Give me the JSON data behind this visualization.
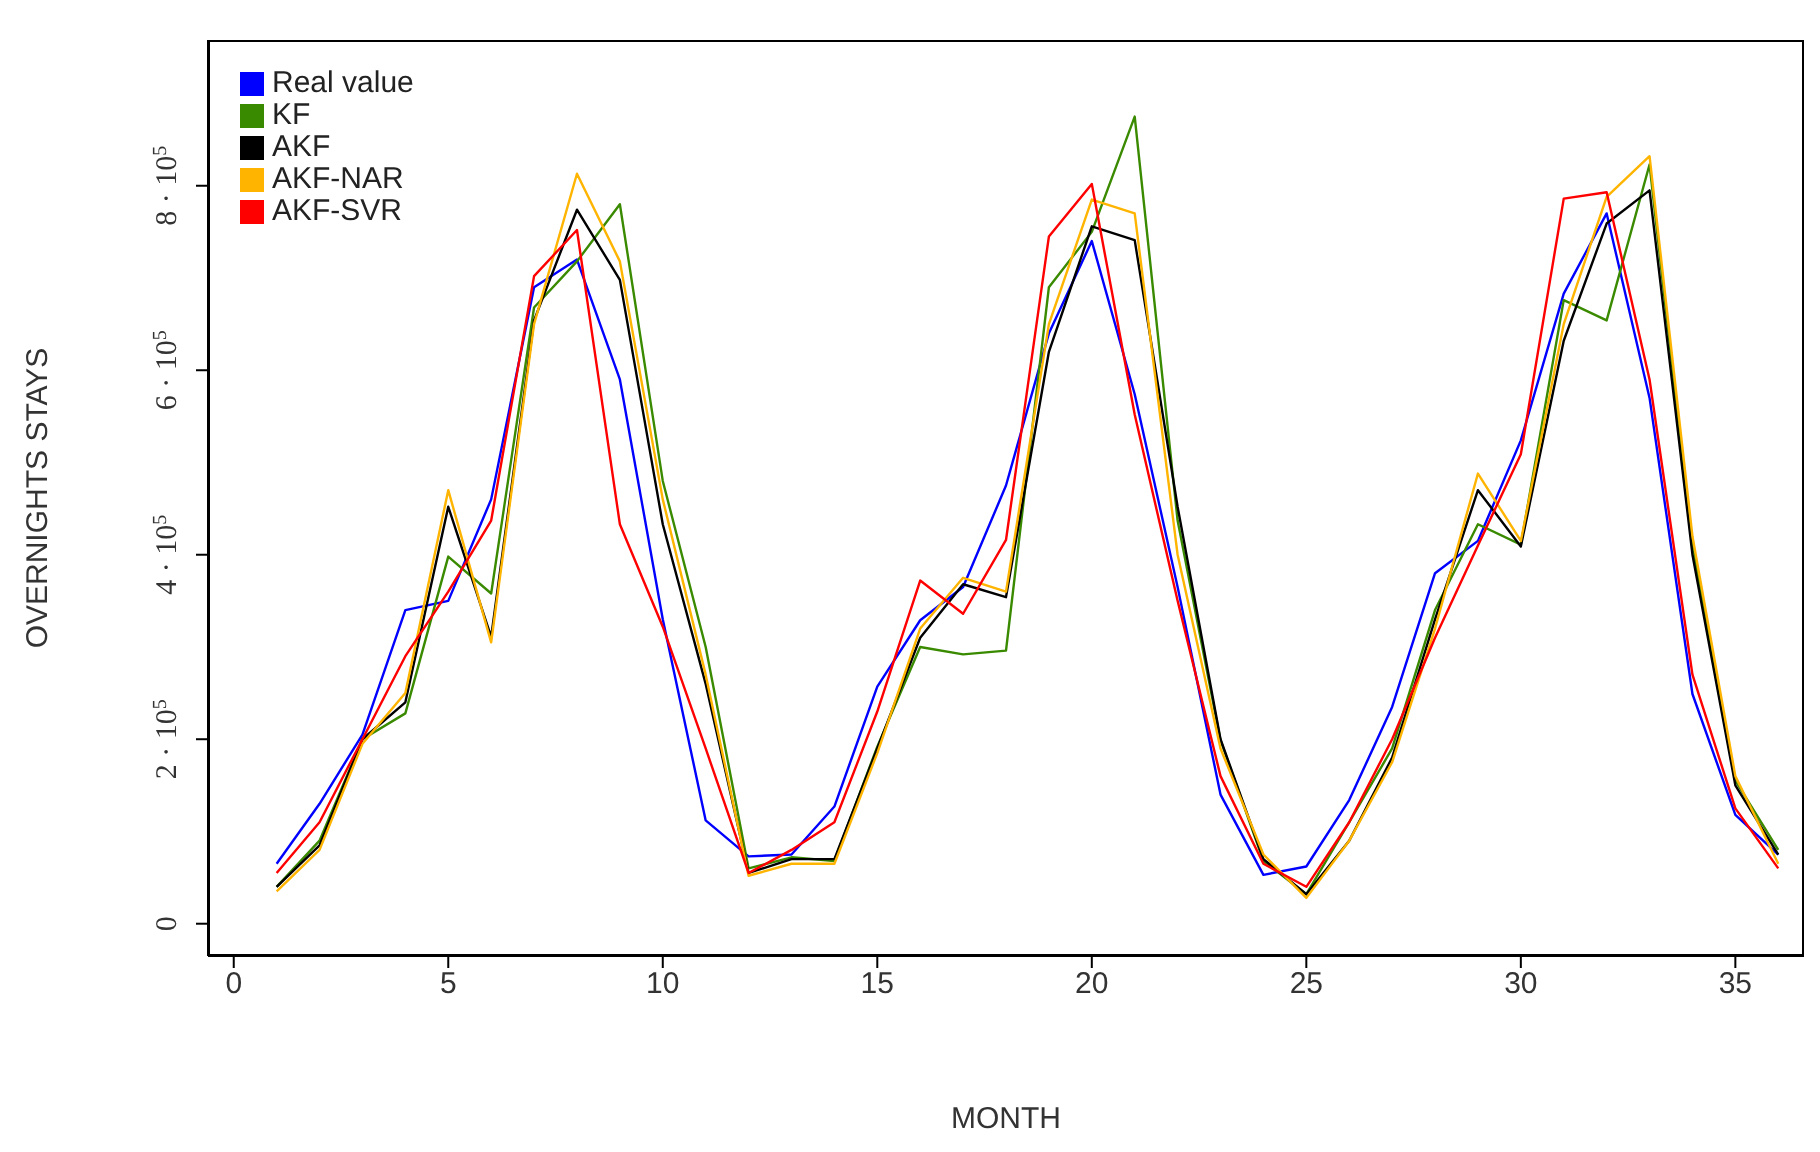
{
  "chart_data": {
    "type": "line",
    "xlabel": "MONTH",
    "ylabel": "OVERNIGHTS STAYS",
    "x": [
      1,
      2,
      3,
      4,
      5,
      6,
      7,
      8,
      9,
      10,
      11,
      12,
      13,
      14,
      15,
      16,
      17,
      18,
      19,
      20,
      21,
      22,
      23,
      24,
      25,
      26,
      27,
      28,
      29,
      30,
      31,
      32,
      33,
      34,
      35,
      36
    ],
    "xlim": [
      -0.6,
      36.6
    ],
    "xticks": [
      0,
      5,
      10,
      15,
      20,
      25,
      30,
      35
    ],
    "ylim": [
      -35000,
      958000
    ],
    "yticks": [
      {
        "value": 0,
        "label": "0"
      },
      {
        "value": 200000,
        "label": "2 · 10$^{5}$"
      },
      {
        "value": 400000,
        "label": "4 · 10$^{5}$"
      },
      {
        "value": 600000,
        "label": "6 · 10$^{5}$"
      },
      {
        "value": 800000,
        "label": "8 · 10$^{5}$"
      }
    ],
    "grid": false,
    "legend": "top left",
    "marker": "none",
    "line_style": "solid",
    "series": [
      {
        "name": "Real value",
        "color": "#0000ff",
        "values": [
          65000,
          130000,
          205000,
          340000,
          350000,
          460000,
          690000,
          720000,
          590000,
          330000,
          112000,
          73000,
          75000,
          127000,
          257000,
          329000,
          365000,
          475000,
          640000,
          740000,
          574000,
          365000,
          140000,
          53000,
          62000,
          134000,
          235000,
          380000,
          415000,
          524000,
          683000,
          770000,
          570000,
          249000,
          118000,
          75000
        ]
      },
      {
        "name": "KF",
        "color": "#3a8a00",
        "values": [
          40000,
          90000,
          200000,
          228000,
          398000,
          358000,
          668000,
          718000,
          780000,
          480000,
          300000,
          60000,
          72000,
          68000,
          192000,
          300000,
          292000,
          296000,
          690000,
          750000,
          875000,
          437000,
          199000,
          68000,
          32000,
          110000,
          190000,
          340000,
          433000,
          411000,
          676000,
          654000,
          823000,
          409000,
          155000,
          80000
        ]
      },
      {
        "name": "AKF",
        "color": "#000000",
        "values": [
          40000,
          85000,
          200000,
          240000,
          452000,
          311000,
          654000,
          774000,
          698000,
          433000,
          260000,
          55000,
          70000,
          70000,
          190000,
          310000,
          368000,
          354000,
          620000,
          756000,
          741000,
          452000,
          200000,
          70000,
          32000,
          90000,
          180000,
          330000,
          470000,
          409000,
          632000,
          759000,
          795000,
          400000,
          150000,
          75000
        ]
      },
      {
        "name": "AKF-NAR",
        "color": "#ffb400",
        "values": [
          35000,
          80000,
          195000,
          250000,
          470000,
          305000,
          650000,
          813000,
          718000,
          460000,
          270000,
          52000,
          65000,
          65000,
          185000,
          320000,
          375000,
          360000,
          650000,
          785000,
          770000,
          400000,
          190000,
          75000,
          28000,
          90000,
          175000,
          320000,
          488000,
          415000,
          650000,
          788000,
          832000,
          420000,
          160000,
          65000
        ]
      },
      {
        "name": "AKF-SVR",
        "color": "#ff0000",
        "values": [
          55000,
          110000,
          200000,
          290000,
          360000,
          437000,
          702000,
          752000,
          433000,
          322000,
          190000,
          55000,
          80000,
          110000,
          230000,
          372000,
          336000,
          416000,
          745000,
          802000,
          552000,
          350000,
          160000,
          65000,
          40000,
          110000,
          200000,
          310000,
          410000,
          509000,
          786000,
          793000,
          590000,
          270000,
          125000,
          60000
        ]
      }
    ]
  }
}
